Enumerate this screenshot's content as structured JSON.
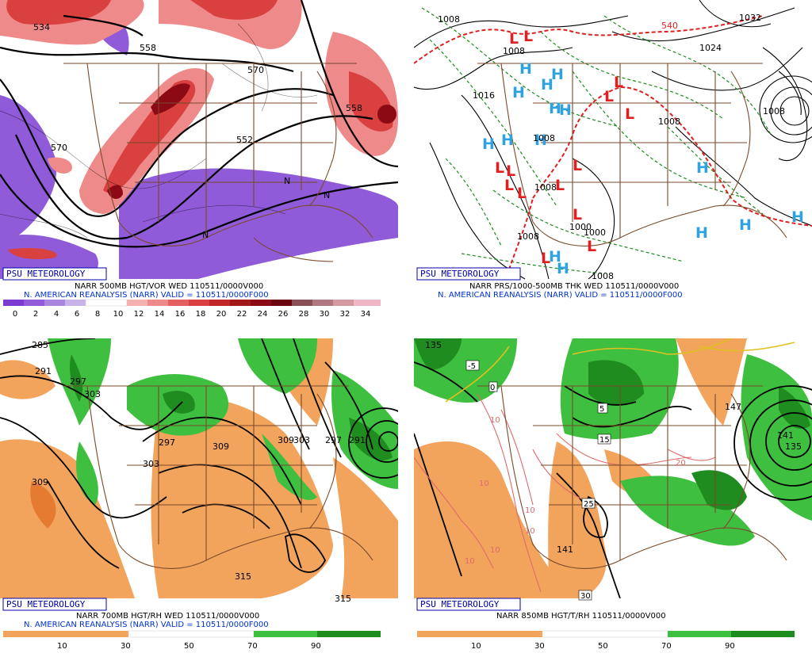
{
  "badge": "PSU METEOROLOGY",
  "colors": {
    "vort_neg": "#8f5bd8",
    "vort_pos_light": "#ef8a8a",
    "vort_pos_mid": "#d94040",
    "vort_pos_dark": "#8b0a14",
    "rh_dry": "#f2a35c",
    "rh_moist": "#3fbf3f",
    "rh_very_moist": "#1e8c1e",
    "high_symbol": "#2ea3e0",
    "low_symbol": "#e02020",
    "borders": "#7a4a2a"
  },
  "panels": {
    "vort500": {
      "title1": "NARR 500MB HGT/VOR WED 110511/0000V000",
      "title2": "N. AMERICAN REANALYSIS (NARR) VALID = 110511/0000F000",
      "colorbar_labels": [
        "0",
        "2",
        "4",
        "6",
        "8",
        "10",
        "12",
        "14",
        "16",
        "18",
        "20",
        "22",
        "24",
        "26",
        "28",
        "30",
        "32",
        "34"
      ],
      "contour_labels": [
        "534",
        "558",
        "570",
        "570",
        "552",
        "558"
      ],
      "n_label": "N"
    },
    "thick": {
      "title1": "NARR PRS/1000-500MB THK WED 110511/0000V000",
      "title2": "N. AMERICAN REANALYSIS (NARR) VALID = 110511/0000F000",
      "isobar_labels": [
        "1008",
        "1008",
        "1016",
        "1008",
        "1024",
        "1008",
        "1032",
        "1008",
        "1000",
        "1008",
        "1000",
        "1008",
        "1008",
        "540"
      ],
      "high_label": "H",
      "low_label": "L"
    },
    "rh700": {
      "title1": "NARR 700MB HGT/RH WED 110511/0000V000",
      "title2": "N. AMERICAN REANALYSIS (NARR) VALID = 110511/0000F000",
      "colorbar_labels": [
        "10",
        "30",
        "50",
        "70",
        "90"
      ],
      "contour_labels": [
        "285",
        "291",
        "297",
        "303",
        "309",
        "297",
        "303",
        "309",
        "303",
        "297",
        "291",
        "309",
        "315",
        "315"
      ]
    },
    "t850": {
      "title1": "NARR 850MB HGT/T/RH 110511/0000V000",
      "colorbar_labels": [
        "10",
        "30",
        "50",
        "70",
        "90"
      ],
      "contour_labels": [
        "135",
        "147",
        "141",
        "135",
        "141"
      ],
      "temp_labels": [
        "-5",
        "0",
        "5",
        "15",
        "25",
        "30",
        "10",
        "10",
        "10",
        "10",
        "20",
        "10",
        "10"
      ]
    }
  }
}
